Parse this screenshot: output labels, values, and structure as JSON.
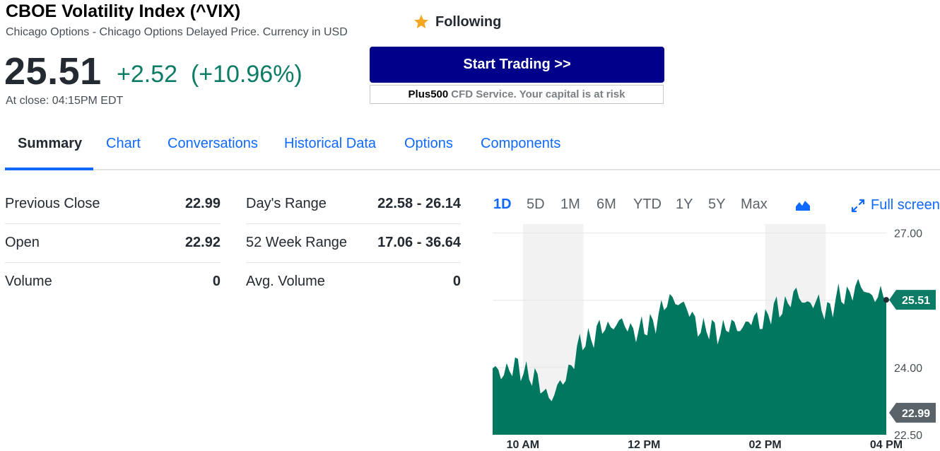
{
  "quote": {
    "title": "CBOE Volatility Index (^VIX)",
    "subtitle": "Chicago Options - Chicago Options Delayed Price. Currency in USD",
    "follow_label": "Following",
    "price": "25.51",
    "change": "+2.52",
    "change_pct": "(+10.96%)",
    "close_time": "At close: 04:15PM EDT"
  },
  "ad": {
    "button_label": "Start Trading >>",
    "brand": "Plus500",
    "disclaimer": "CFD Service. Your capital is at risk"
  },
  "tabs": [
    "Summary",
    "Chart",
    "Conversations",
    "Historical Data",
    "Options",
    "Components"
  ],
  "stats_left": [
    {
      "label": "Previous Close",
      "value": "22.99"
    },
    {
      "label": "Open",
      "value": "22.92"
    },
    {
      "label": "Volume",
      "value": "0"
    }
  ],
  "stats_right": [
    {
      "label": "Day's Range",
      "value": "22.58 - 26.14"
    },
    {
      "label": "52 Week Range",
      "value": "17.06 - 36.64"
    },
    {
      "label": "Avg. Volume",
      "value": "0"
    }
  ],
  "ranges": [
    "1D",
    "5D",
    "1M",
    "6M",
    "YTD",
    "1Y",
    "5Y",
    "Max"
  ],
  "active_range": "1D",
  "fullscreen_label": "Full screen",
  "colors": {
    "accent": "#0f69ff",
    "positive": "#0d7c66",
    "area_fill": "#00775f",
    "prev_close_flag": "#5b636a",
    "ad_button": "#00008b",
    "star": "#f5a623"
  },
  "chart_data": {
    "type": "area",
    "y_ticks": [
      "27.00",
      "24.00",
      "22.50"
    ],
    "ylim": [
      22.5,
      27.2
    ],
    "x_ticks": [
      "10 AM",
      "12 PM",
      "02 PM",
      "04 PM"
    ],
    "x_hours": [
      9.5,
      10,
      10.5,
      11,
      11.5,
      12,
      12.5,
      13,
      13.5,
      14,
      14.5,
      15,
      15.5,
      16
    ],
    "values": [
      23.9,
      24.0,
      23.3,
      24.6,
      25.0,
      24.8,
      25.6,
      24.8,
      24.9,
      25.1,
      25.6,
      25.3,
      25.8,
      25.5
    ],
    "current_label": "25.51",
    "prev_close_label": "22.99",
    "current_value": 25.51,
    "prev_close_value": 22.99
  }
}
